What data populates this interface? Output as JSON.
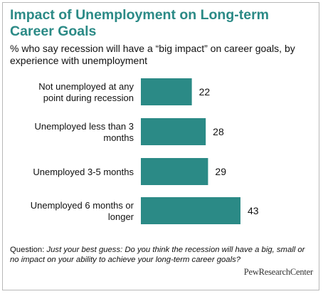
{
  "title": "Impact of Unemployment on Long-term Career Goals",
  "subtitle": "% who say recession will have a “big impact” on career goals, by experience with unemployment",
  "colors": {
    "bar": "#2b8a86",
    "title": "#2b8a86"
  },
  "chart_data": {
    "type": "bar",
    "orientation": "horizontal",
    "categories": [
      [
        "Not unemployed at any",
        "point during recession"
      ],
      [
        "Unemployed less than 3",
        "months"
      ],
      [
        "Unemployed 3-5 months"
      ],
      [
        "Unemployed 6 months or",
        "longer"
      ]
    ],
    "values": [
      22,
      28,
      29,
      43
    ],
    "data_labels": [
      "22",
      "28",
      "29",
      "43"
    ],
    "xlim": [
      0,
      43
    ],
    "grid": false,
    "legend": "none"
  },
  "note": {
    "prefix": "Question:",
    "text": "Just your best guess: Do you think the recession will have a big, small or no impact on your ability to achieve your long-term career goals?"
  },
  "source": "PewResearchCenter"
}
